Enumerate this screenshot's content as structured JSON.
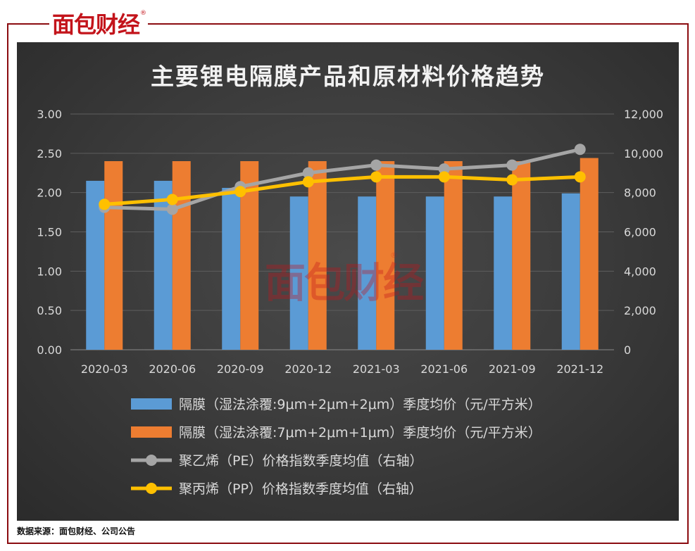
{
  "brand": {
    "logo_text": "面包财经",
    "registered_mark": "®"
  },
  "source_note": "数据来源：面包财经、公司公告",
  "colors": {
    "frame": "#8b0c10",
    "bar_blue": "#5b9bd5",
    "bar_orange": "#ed7d31",
    "line_gray": "#a5a5a5",
    "line_yellow": "#ffc000"
  },
  "chart_data": {
    "type": "bar",
    "title": "主要锂电隔膜产品和原材料价格趋势",
    "categories": [
      "2020-03",
      "2020-06",
      "2020-09",
      "2020-12",
      "2021-03",
      "2021-06",
      "2021-09",
      "2021-12"
    ],
    "y_left": {
      "ylim": [
        0,
        3
      ],
      "ticks": [
        "0.00",
        "0.50",
        "1.00",
        "1.50",
        "2.00",
        "2.50",
        "3.00"
      ]
    },
    "y_right": {
      "ylim": [
        0,
        12000
      ],
      "ticks": [
        "0",
        "2,000",
        "4,000",
        "6,000",
        "8,000",
        "10,000",
        "12,000"
      ]
    },
    "series": [
      {
        "name": "隔膜（湿法涂覆:9μm+2μm+2μm）季度均价（元/平方米）",
        "type": "bar",
        "axis": "left",
        "color": "#5b9bd5",
        "values": [
          2.15,
          2.15,
          2.06,
          1.95,
          1.95,
          1.95,
          1.95,
          1.99
        ]
      },
      {
        "name": "隔膜（湿法涂覆:7μm+2μm+1μm）季度均价（元/平方米）",
        "type": "bar",
        "axis": "left",
        "color": "#ed7d31",
        "values": [
          2.4,
          2.4,
          2.4,
          2.4,
          2.4,
          2.4,
          2.4,
          2.44
        ]
      },
      {
        "name": "聚乙烯（PE）价格指数季度均值（右轴）",
        "type": "line",
        "axis": "right",
        "color": "#a5a5a5",
        "values": [
          7250,
          7150,
          8300,
          9000,
          9400,
          9200,
          9400,
          10200
        ]
      },
      {
        "name": "聚丙烯（PP）价格指数季度均值（右轴）",
        "type": "line",
        "axis": "right",
        "color": "#ffc000",
        "values": [
          7400,
          7650,
          8050,
          8550,
          8800,
          8800,
          8650,
          8800
        ]
      }
    ],
    "legend_position": "bottom",
    "grid": true
  }
}
